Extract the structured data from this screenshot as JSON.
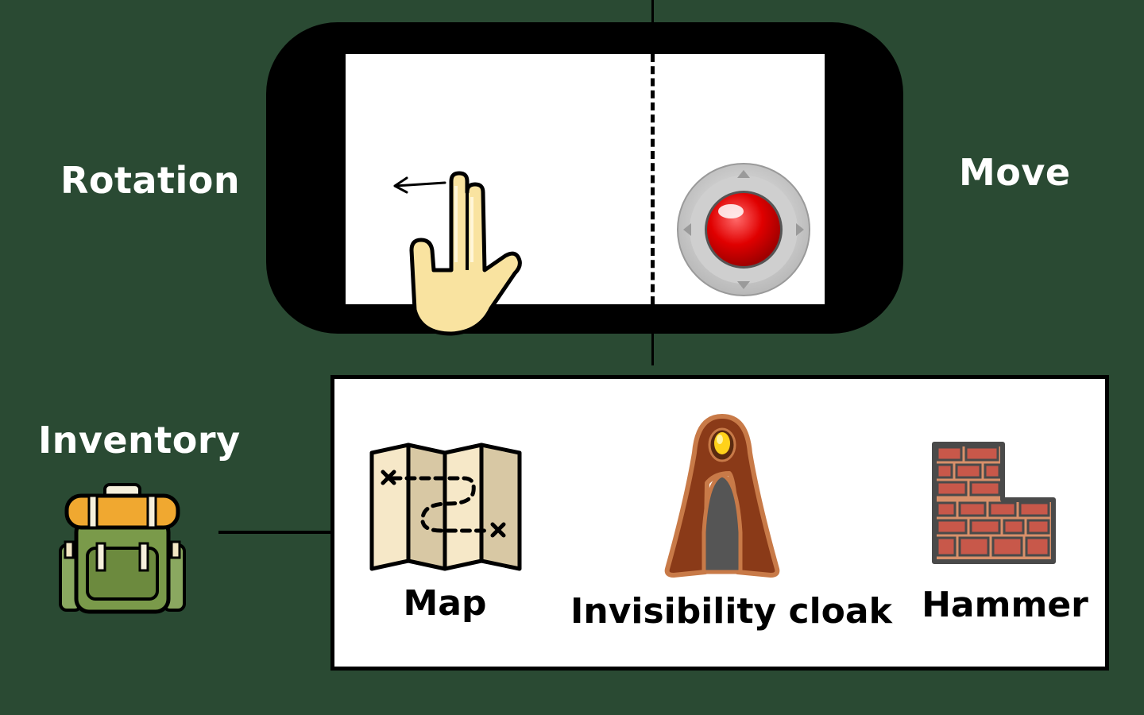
{
  "labels": {
    "rotation": "Rotation",
    "move": "Move",
    "inventory": "Inventory"
  },
  "inventory_items": [
    {
      "label": "Map",
      "icon": "treasure-map-icon"
    },
    {
      "label": "Invisibility cloak",
      "icon": "cloak-icon"
    },
    {
      "label": "Hammer",
      "icon": "brick-wall-icon"
    }
  ],
  "icons": {
    "phone": "smartphone-landscape-icon",
    "swipe": "two-finger-swipe-hand-icon",
    "joystick": "virtual-joystick-icon",
    "backpack": "backpack-icon"
  },
  "colors": {
    "background": "#2a4a33",
    "joystick_knob": "#e00000",
    "hand_fill": "#f9e3a0",
    "backpack_green": "#7a9a4a",
    "backpack_top": "#f0a830",
    "cloak_brown": "#8a3a18",
    "brick_red": "#c8584a"
  }
}
